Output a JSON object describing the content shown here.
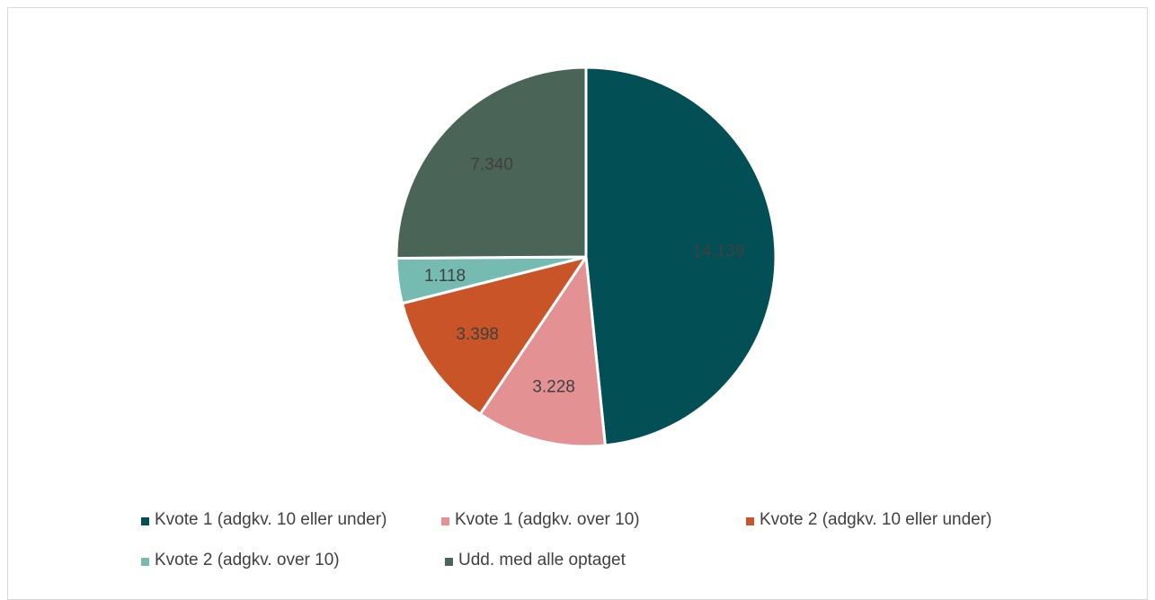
{
  "chart_data": {
    "type": "pie",
    "title": "",
    "slices": [
      {
        "label": "Kvote 1 (adgkv. 10 eller under)",
        "value": 14139,
        "display": "14.139",
        "color": "#024f55"
      },
      {
        "label": "Kvote 1 (adgkv. over 10)",
        "value": 3228,
        "display": "3.228",
        "color": "#e39193"
      },
      {
        "label": "Kvote 2 (adgkv. 10 eller under)",
        "value": 3398,
        "display": "3.398",
        "color": "#c85428"
      },
      {
        "label": "Kvote 2 (adgkv. over 10)",
        "value": 1118,
        "display": "1.118",
        "color": "#76bbb1"
      },
      {
        "label": "Udd. med alle optaget",
        "value": 7340,
        "display": "7.340",
        "color": "#4a6558"
      }
    ],
    "start_angle_deg": 0,
    "direction": "clockwise",
    "legend_position": "bottom"
  }
}
